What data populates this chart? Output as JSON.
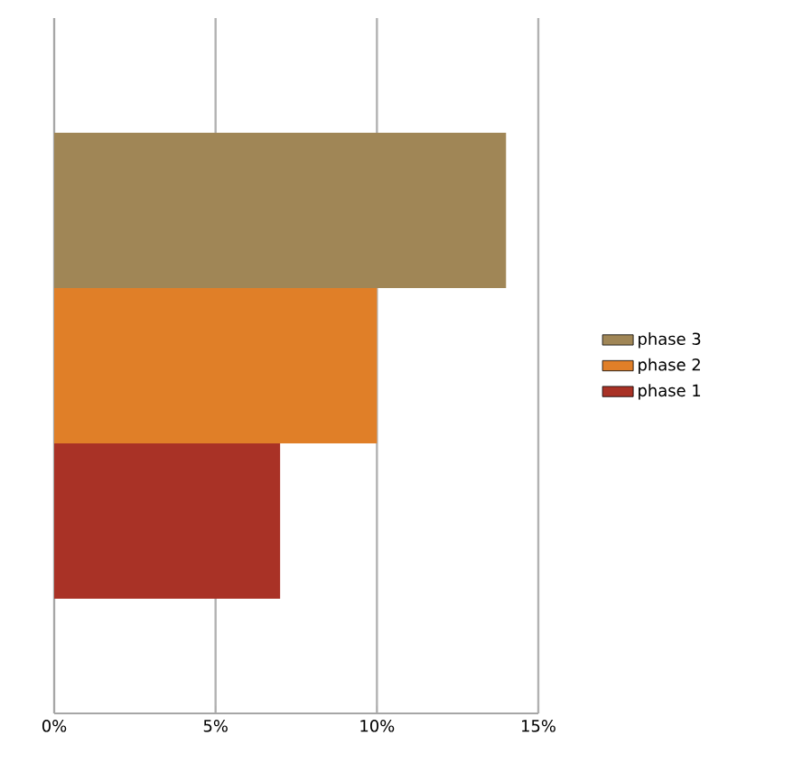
{
  "chart_data": {
    "type": "bar",
    "orientation": "horizontal",
    "categories": [
      null
    ],
    "series": [
      {
        "name": "phase 1",
        "color": "#a93226",
        "values": [
          7
        ]
      },
      {
        "name": "phase 2",
        "color": "#e07f28",
        "values": [
          10
        ]
      },
      {
        "name": "phase 3",
        "color": "#a08656",
        "values": [
          14
        ]
      }
    ],
    "xlim": [
      0,
      15
    ],
    "xticks": [
      {
        "value": 0,
        "label": "0%"
      },
      {
        "value": 5,
        "label": "5%"
      },
      {
        "value": 10,
        "label": "10%"
      },
      {
        "value": 15,
        "label": "15%"
      }
    ],
    "grid": "x",
    "legend": "right"
  }
}
